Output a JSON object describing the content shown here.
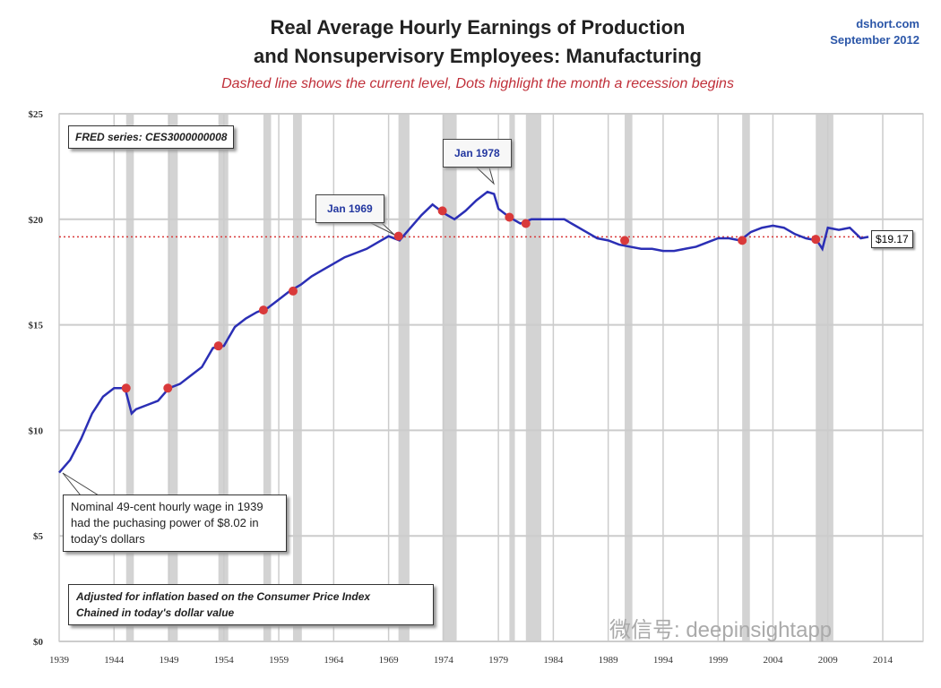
{
  "header": {
    "title_line1": "Real Average Hourly Earnings of Production",
    "title_line2": "and Nonsupervisory Employees: Manufacturing",
    "subtitle": "Dashed line shows the current level, Dots highlight the month a recession begins",
    "source_line1": "dshort.com",
    "source_line2": "September 2012"
  },
  "annotations": {
    "fred": "FRED series: CES3000000008",
    "jan1969": "Jan 1969",
    "jan1978": "Jan 1978",
    "current": "$19.17",
    "nominal": "Nominal 49-cent hourly wage in 1939  had the puchasing power of $8.02  in today's dollars",
    "adjusted_line1": "Adjusted for inflation based on the Consumer Price Index",
    "adjusted_line2": "Chained in today's dollar value"
  },
  "watermark": "微信号: deepinsightapp",
  "colors": {
    "line": "#2b2fb5",
    "dot": "#d9393a",
    "current": "#d9393a",
    "recession": "#c8c8c8"
  },
  "chart_data": {
    "type": "line",
    "title": "Real Average Hourly Earnings of Production and Nonsupervisory Employees: Manufacturing",
    "xlim": [
      1939,
      2014
    ],
    "ylim": [
      0,
      25
    ],
    "x_ticks": [
      "1939",
      "1944",
      "1949",
      "1954",
      "1959",
      "1964",
      "1969",
      "1974",
      "1979",
      "1984",
      "1989",
      "1994",
      "1999",
      "2004",
      "2009",
      "2014"
    ],
    "y_ticks": [
      "$0",
      "$5",
      "$10",
      "$15",
      "$20",
      "$25"
    ],
    "current_level": 19.17,
    "series": [
      {
        "name": "Real avg hourly earnings",
        "x": [
          1939,
          1940,
          1941,
          1942,
          1943,
          1944,
          1945,
          1945.6,
          1946,
          1947,
          1948,
          1949,
          1950,
          1951,
          1952,
          1953,
          1954,
          1955,
          1956,
          1957,
          1958,
          1959,
          1960,
          1961,
          1962,
          1963,
          1964,
          1965,
          1966,
          1967,
          1968,
          1969,
          1970,
          1971,
          1972,
          1973,
          1974,
          1975,
          1976,
          1977,
          1978,
          1978.6,
          1979,
          1980,
          1981,
          1982,
          1983,
          1984,
          1985,
          1986,
          1987,
          1988,
          1989,
          1990,
          1991,
          1992,
          1993,
          1994,
          1995,
          1996,
          1997,
          1998,
          1999,
          2000,
          2001,
          2002,
          2003,
          2004,
          2005,
          2006,
          2007,
          2008,
          2008.5,
          2009,
          2010,
          2011,
          2012,
          2012.7
        ],
        "y": [
          8.0,
          8.6,
          9.6,
          10.8,
          11.6,
          12.0,
          12.0,
          10.8,
          11.0,
          11.2,
          11.4,
          12.0,
          12.2,
          12.6,
          13.0,
          13.9,
          14.0,
          14.9,
          15.3,
          15.6,
          15.8,
          16.2,
          16.6,
          16.9,
          17.3,
          17.6,
          17.9,
          18.2,
          18.4,
          18.6,
          18.9,
          19.2,
          19.0,
          19.6,
          20.2,
          20.7,
          20.3,
          20.0,
          20.4,
          20.9,
          21.3,
          21.2,
          20.5,
          20.1,
          19.8,
          20.0,
          20.0,
          20.0,
          20.0,
          19.7,
          19.4,
          19.1,
          19.0,
          18.8,
          18.7,
          18.6,
          18.6,
          18.5,
          18.5,
          18.6,
          18.7,
          18.9,
          19.1,
          19.1,
          19.0,
          19.4,
          19.6,
          19.7,
          19.6,
          19.3,
          19.1,
          19.0,
          18.6,
          19.6,
          19.5,
          19.6,
          19.1,
          19.17
        ]
      }
    ],
    "recession_dots": {
      "x": [
        1945.1,
        1948.9,
        1953.5,
        1957.6,
        1960.3,
        1969.9,
        1973.9,
        1980.0,
        1981.5,
        1990.5,
        2001.2,
        2007.9
      ],
      "y": [
        12.0,
        12.0,
        14.0,
        15.7,
        16.6,
        19.2,
        20.4,
        20.1,
        19.8,
        19.0,
        19.0,
        19.05
      ]
    },
    "recessions": [
      [
        1945.1,
        1945.8
      ],
      [
        1948.9,
        1949.8
      ],
      [
        1953.5,
        1954.4
      ],
      [
        1957.6,
        1958.3
      ],
      [
        1960.3,
        1961.1
      ],
      [
        1969.9,
        1970.9
      ],
      [
        1973.9,
        1975.2
      ],
      [
        1980.0,
        1980.5
      ],
      [
        1981.5,
        1982.9
      ],
      [
        1990.5,
        1991.2
      ],
      [
        2001.2,
        2001.9
      ],
      [
        2007.9,
        2009.5
      ]
    ]
  }
}
